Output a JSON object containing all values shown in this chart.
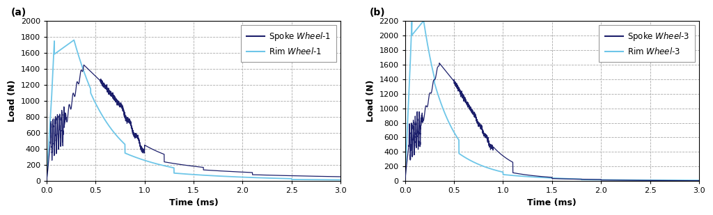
{
  "panel_a": {
    "title": "(a)",
    "xlabel": "Time (ms)",
    "ylabel": "Load (N)",
    "xlim": [
      0,
      3
    ],
    "ylim": [
      0,
      2000
    ],
    "yticks": [
      0,
      200,
      400,
      600,
      800,
      1000,
      1200,
      1400,
      1600,
      1800,
      2000
    ],
    "xticks": [
      0,
      0.5,
      1.0,
      1.5,
      2.0,
      2.5,
      3.0
    ],
    "spoke_color": "#1c1f6b",
    "rim_color": "#6ec6e8",
    "legend_spoke_normal": "Spoke ",
    "legend_spoke_italic": "Wheel-1",
    "legend_rim_normal": "Rim ",
    "legend_rim_italic": "Wheel-1"
  },
  "panel_b": {
    "title": "(b)",
    "xlabel": "Time (ms)",
    "ylabel": "Load (N)",
    "xlim": [
      0,
      3
    ],
    "ylim": [
      0,
      2200
    ],
    "yticks": [
      0,
      200,
      400,
      600,
      800,
      1000,
      1200,
      1400,
      1600,
      1800,
      2000,
      2200
    ],
    "xticks": [
      0,
      0.5,
      1.0,
      1.5,
      2.0,
      2.5,
      3.0
    ],
    "spoke_color": "#1c1f6b",
    "rim_color": "#6ec6e8",
    "legend_spoke_normal": "Spoke ",
    "legend_spoke_italic": "Wheel-3",
    "legend_rim_normal": "Rim ",
    "legend_rim_italic": "Wheel-3"
  },
  "background_color": "#ffffff",
  "grid_color": "#aaaaaa",
  "grid_style": "--",
  "grid_linewidth": 0.6
}
